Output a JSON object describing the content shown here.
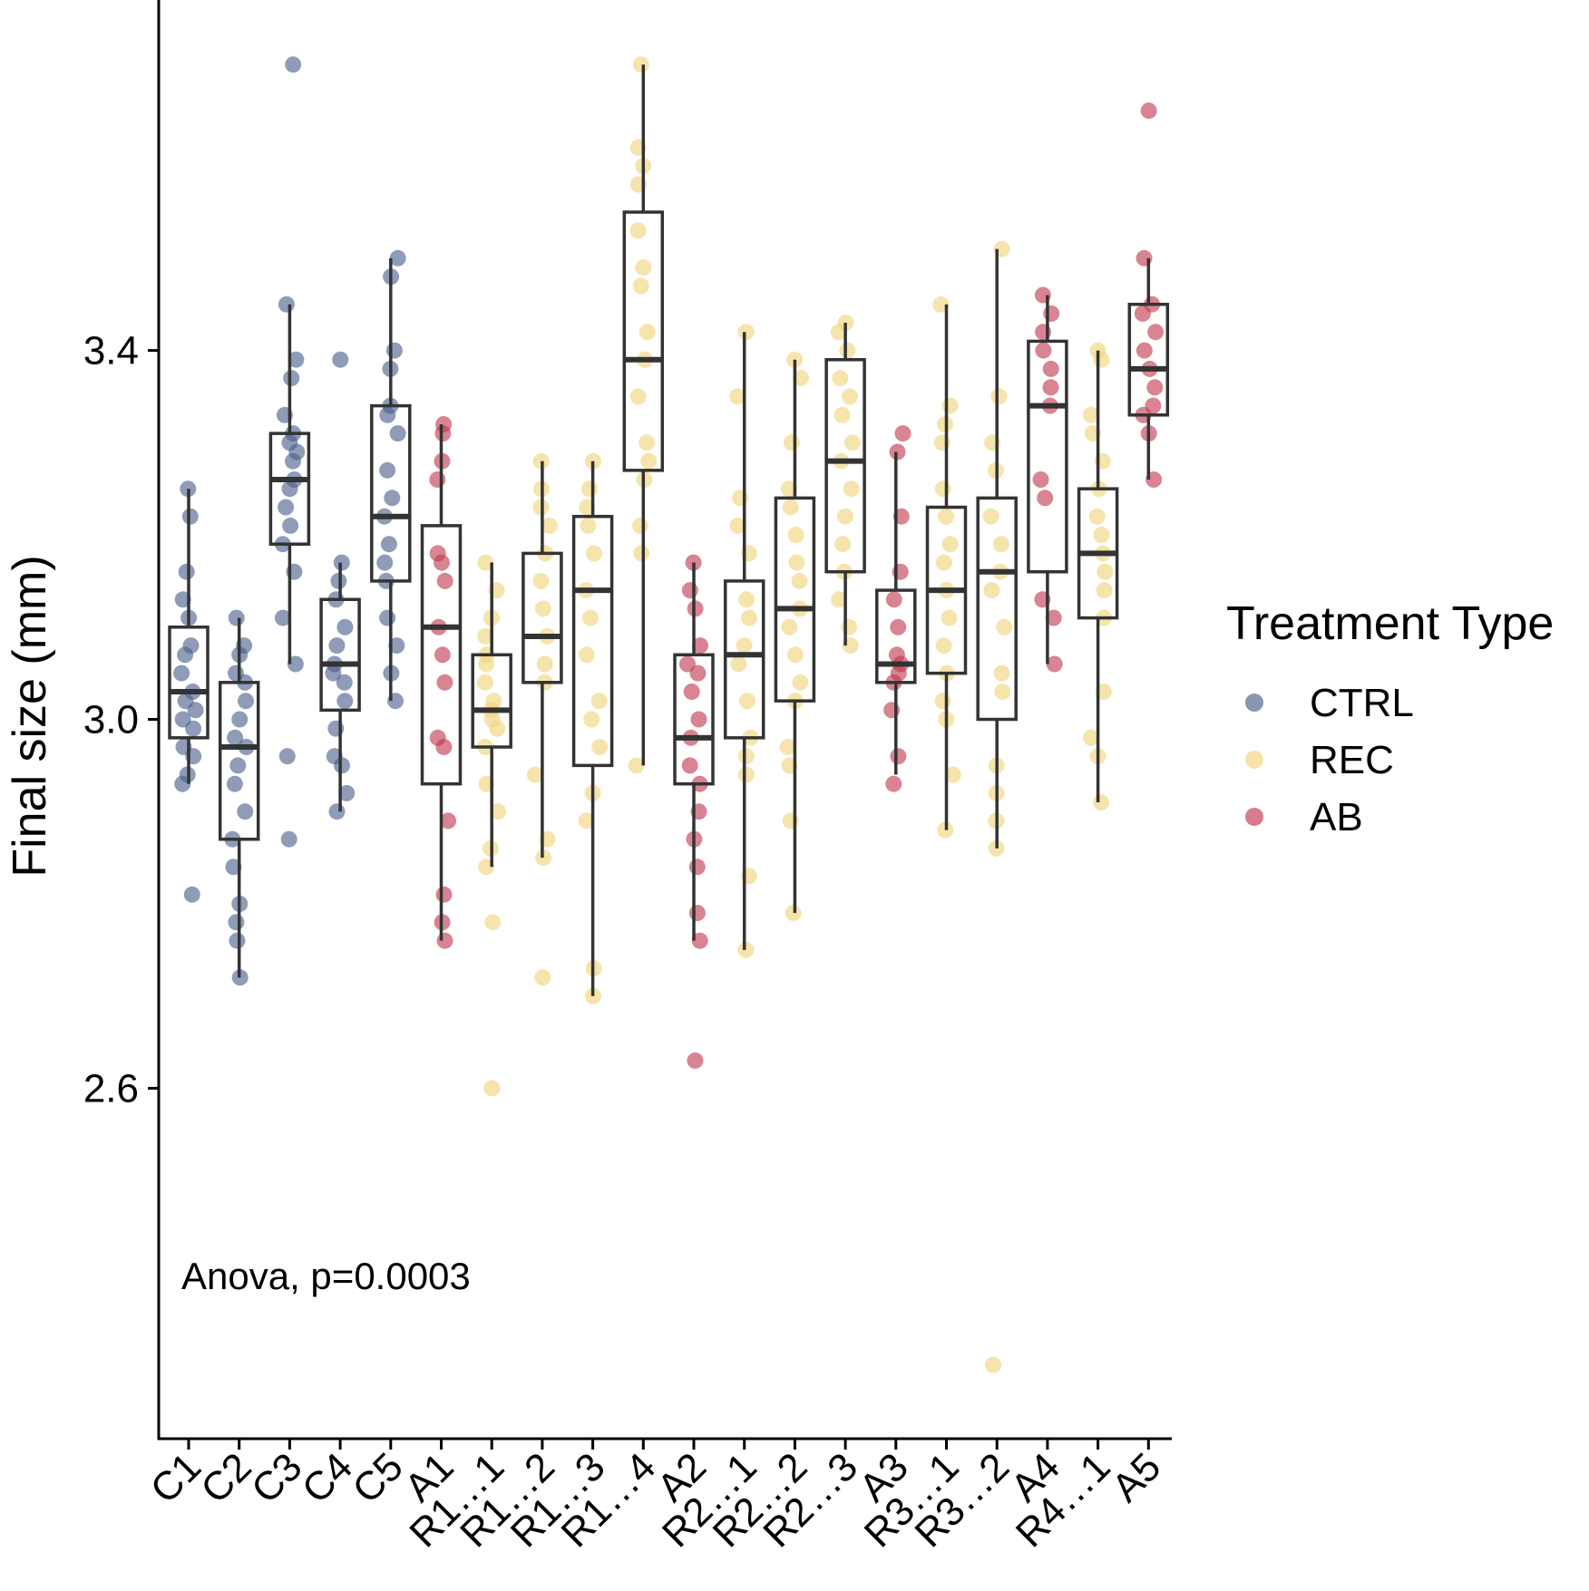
{
  "chart_data": {
    "type": "boxplot",
    "title": "",
    "xlabel": "",
    "ylabel": "Final size (mm)",
    "ylim": [
      2.22,
      3.78
    ],
    "y_ticks": [
      2.6,
      3.0,
      3.4
    ],
    "y_tick_labels": [
      "2.6",
      "3.0",
      "3.4"
    ],
    "grid": false,
    "annotation": "Anova, p=0.0003",
    "legend": {
      "title": "Treatment Type",
      "position": "right",
      "entries": [
        {
          "name": "CTRL",
          "color": "#4a5f8c"
        },
        {
          "name": "REC",
          "color": "#f0d47a"
        },
        {
          "name": "AB",
          "color": "#c0394f"
        }
      ]
    },
    "groups": [
      {
        "label": "C1",
        "type": "CTRL",
        "whisker_low": 2.93,
        "q1": 2.98,
        "median": 3.03,
        "q3": 3.1,
        "whisker_high": 3.25,
        "points": [
          2.81,
          2.93,
          2.94,
          2.96,
          2.97,
          2.99,
          3.0,
          3.01,
          3.02,
          3.03,
          3.05,
          3.07,
          3.08,
          3.11,
          3.13,
          3.16,
          3.22,
          3.25
        ]
      },
      {
        "label": "C2",
        "type": "CTRL",
        "whisker_low": 2.72,
        "q1": 2.87,
        "median": 2.97,
        "q3": 3.04,
        "whisker_high": 3.11,
        "points": [
          2.72,
          2.76,
          2.78,
          2.8,
          2.84,
          2.87,
          2.9,
          2.93,
          2.95,
          2.97,
          2.98,
          3.0,
          3.02,
          3.04,
          3.05,
          3.07,
          3.08,
          3.11
        ]
      },
      {
        "label": "C3",
        "type": "CTRL",
        "whisker_low": 3.06,
        "q1": 3.19,
        "median": 3.26,
        "q3": 3.31,
        "whisker_high": 3.45,
        "points": [
          2.87,
          2.96,
          3.06,
          3.11,
          3.16,
          3.19,
          3.21,
          3.23,
          3.25,
          3.26,
          3.28,
          3.29,
          3.3,
          3.31,
          3.33,
          3.37,
          3.39,
          3.45,
          3.71
        ]
      },
      {
        "label": "C4",
        "type": "CTRL",
        "whisker_low": 2.9,
        "q1": 3.01,
        "median": 3.06,
        "q3": 3.13,
        "whisker_high": 3.17,
        "points": [
          2.9,
          2.92,
          2.95,
          2.96,
          2.99,
          3.02,
          3.04,
          3.05,
          3.06,
          3.08,
          3.1,
          3.13,
          3.15,
          3.17,
          3.39
        ]
      },
      {
        "label": "C5",
        "type": "CTRL",
        "whisker_low": 3.02,
        "q1": 3.15,
        "median": 3.22,
        "q3": 3.34,
        "whisker_high": 3.5,
        "points": [
          3.02,
          3.05,
          3.08,
          3.11,
          3.15,
          3.17,
          3.19,
          3.22,
          3.24,
          3.27,
          3.31,
          3.33,
          3.34,
          3.38,
          3.4,
          3.48,
          3.5
        ]
      },
      {
        "label": "A1",
        "type": "AB",
        "whisker_low": 2.76,
        "q1": 2.93,
        "median": 3.1,
        "q3": 3.21,
        "whisker_high": 3.32,
        "points": [
          2.76,
          2.78,
          2.81,
          2.89,
          2.97,
          2.98,
          3.04,
          3.07,
          3.1,
          3.15,
          3.17,
          3.18,
          3.26,
          3.28,
          3.31,
          3.32
        ]
      },
      {
        "label": "R1…1",
        "type": "REC",
        "whisker_low": 2.84,
        "q1": 2.97,
        "median": 3.01,
        "q3": 3.07,
        "whisker_high": 3.17,
        "points": [
          2.6,
          2.78,
          2.84,
          2.86,
          2.9,
          2.93,
          2.97,
          2.99,
          3.0,
          3.01,
          3.02,
          3.04,
          3.06,
          3.07,
          3.09,
          3.11,
          3.14,
          3.17
        ]
      },
      {
        "label": "R1…2",
        "type": "REC",
        "whisker_low": 2.85,
        "q1": 3.04,
        "median": 3.09,
        "q3": 3.18,
        "whisker_high": 3.28,
        "points": [
          2.72,
          2.85,
          2.87,
          2.94,
          3.04,
          3.06,
          3.09,
          3.12,
          3.15,
          3.18,
          3.21,
          3.23,
          3.25,
          3.28
        ]
      },
      {
        "label": "R1…3",
        "type": "REC",
        "whisker_low": 2.7,
        "q1": 2.95,
        "median": 3.14,
        "q3": 3.22,
        "whisker_high": 3.28,
        "points": [
          2.7,
          2.73,
          2.89,
          2.92,
          2.97,
          3.0,
          3.02,
          3.07,
          3.11,
          3.14,
          3.18,
          3.21,
          3.23,
          3.25,
          3.28
        ]
      },
      {
        "label": "R1…4",
        "type": "REC",
        "whisker_low": 2.95,
        "q1": 3.27,
        "median": 3.39,
        "q3": 3.55,
        "whisker_high": 3.71,
        "points": [
          2.95,
          3.18,
          3.21,
          3.26,
          3.28,
          3.3,
          3.35,
          3.39,
          3.42,
          3.47,
          3.49,
          3.53,
          3.58,
          3.6,
          3.62,
          3.71
        ]
      },
      {
        "label": "A2",
        "type": "AB",
        "whisker_low": 2.76,
        "q1": 2.93,
        "median": 2.98,
        "q3": 3.07,
        "whisker_high": 3.17,
        "points": [
          2.63,
          2.76,
          2.79,
          2.84,
          2.87,
          2.9,
          2.93,
          2.95,
          2.98,
          3.0,
          3.03,
          3.05,
          3.06,
          3.08,
          3.12,
          3.14,
          3.17
        ]
      },
      {
        "label": "R2…1",
        "type": "REC",
        "whisker_low": 2.75,
        "q1": 2.98,
        "median": 3.07,
        "q3": 3.15,
        "whisker_high": 3.42,
        "points": [
          2.75,
          2.83,
          2.94,
          2.96,
          2.98,
          3.02,
          3.06,
          3.08,
          3.11,
          3.13,
          3.18,
          3.21,
          3.24,
          3.35,
          3.42
        ]
      },
      {
        "label": "R2…2",
        "type": "REC",
        "whisker_low": 2.79,
        "q1": 3.02,
        "median": 3.12,
        "q3": 3.24,
        "whisker_high": 3.39,
        "points": [
          2.79,
          2.89,
          2.95,
          2.97,
          3.02,
          3.04,
          3.07,
          3.1,
          3.12,
          3.15,
          3.17,
          3.2,
          3.23,
          3.25,
          3.3,
          3.37,
          3.39
        ]
      },
      {
        "label": "R2…3",
        "type": "REC",
        "whisker_low": 3.08,
        "q1": 3.16,
        "median": 3.28,
        "q3": 3.39,
        "whisker_high": 3.43,
        "points": [
          3.08,
          3.1,
          3.13,
          3.16,
          3.19,
          3.22,
          3.25,
          3.28,
          3.3,
          3.33,
          3.35,
          3.37,
          3.4,
          3.42,
          3.43
        ]
      },
      {
        "label": "A3",
        "type": "AB",
        "whisker_low": 2.94,
        "q1": 3.04,
        "median": 3.06,
        "q3": 3.14,
        "whisker_high": 3.29,
        "points": [
          2.93,
          2.96,
          3.01,
          3.04,
          3.05,
          3.06,
          3.07,
          3.1,
          3.13,
          3.16,
          3.22,
          3.29,
          3.31
        ]
      },
      {
        "label": "R3…1",
        "type": "REC",
        "whisker_low": 2.88,
        "q1": 3.05,
        "median": 3.14,
        "q3": 3.23,
        "whisker_high": 3.45,
        "points": [
          2.88,
          2.94,
          3.0,
          3.02,
          3.05,
          3.08,
          3.11,
          3.14,
          3.17,
          3.19,
          3.22,
          3.25,
          3.3,
          3.32,
          3.34,
          3.45
        ]
      },
      {
        "label": "R3…2",
        "type": "REC",
        "whisker_low": 2.86,
        "q1": 3.0,
        "median": 3.16,
        "q3": 3.24,
        "whisker_high": 3.51,
        "points": [
          2.3,
          2.86,
          2.89,
          2.92,
          2.95,
          3.03,
          3.05,
          3.1,
          3.14,
          3.16,
          3.19,
          3.22,
          3.27,
          3.3,
          3.35,
          3.51
        ]
      },
      {
        "label": "A4",
        "type": "AB",
        "whisker_low": 3.06,
        "q1": 3.16,
        "median": 3.34,
        "q3": 3.41,
        "whisker_high": 3.46,
        "points": [
          3.06,
          3.11,
          3.13,
          3.24,
          3.26,
          3.34,
          3.36,
          3.38,
          3.4,
          3.42,
          3.44,
          3.46
        ]
      },
      {
        "label": "R4…1",
        "type": "REC",
        "whisker_low": 2.91,
        "q1": 3.11,
        "median": 3.18,
        "q3": 3.25,
        "whisker_high": 3.4,
        "points": [
          2.91,
          2.96,
          2.98,
          3.03,
          3.11,
          3.14,
          3.16,
          3.18,
          3.2,
          3.22,
          3.25,
          3.28,
          3.31,
          3.33,
          3.39,
          3.4
        ]
      },
      {
        "label": "A5",
        "type": "AB",
        "whisker_low": 3.26,
        "q1": 3.33,
        "median": 3.38,
        "q3": 3.45,
        "whisker_high": 3.5,
        "points": [
          3.26,
          3.31,
          3.33,
          3.34,
          3.36,
          3.38,
          3.4,
          3.42,
          3.44,
          3.45,
          3.5,
          3.66
        ]
      }
    ]
  }
}
